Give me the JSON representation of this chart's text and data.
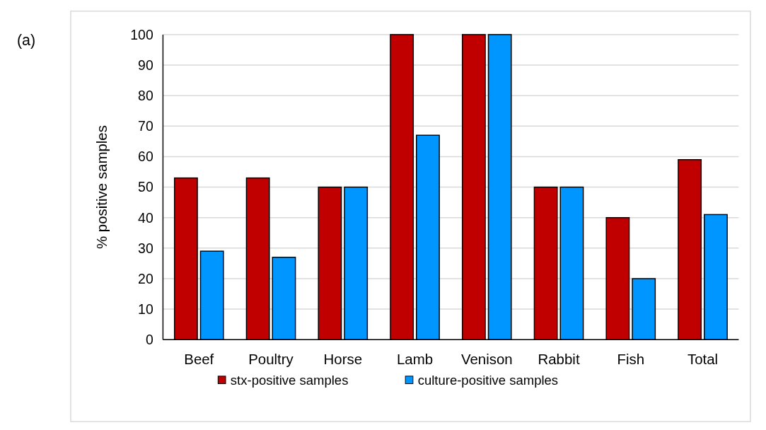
{
  "chart_data": {
    "type": "bar",
    "ylabel": "% positive samples",
    "annotations": [
      "(a)"
    ],
    "categories": [
      "Beef",
      "Poultry",
      "Horse",
      "Lamb",
      "Venison",
      "Rabbit",
      "Fish",
      "Total"
    ],
    "series": [
      {
        "name": "stx-positive samples",
        "color": "#c00000",
        "values": [
          53,
          53,
          50,
          100,
          100,
          50,
          40,
          59
        ]
      },
      {
        "name": "culture-positive samples",
        "color": "#0096ff",
        "values": [
          29,
          27,
          50,
          67,
          100,
          50,
          20,
          41
        ]
      }
    ],
    "ylim": [
      0,
      100
    ],
    "yticks": [
      0,
      10,
      20,
      30,
      40,
      50,
      60,
      70,
      80,
      90,
      100
    ],
    "grid": "y",
    "legend": "bottom"
  }
}
